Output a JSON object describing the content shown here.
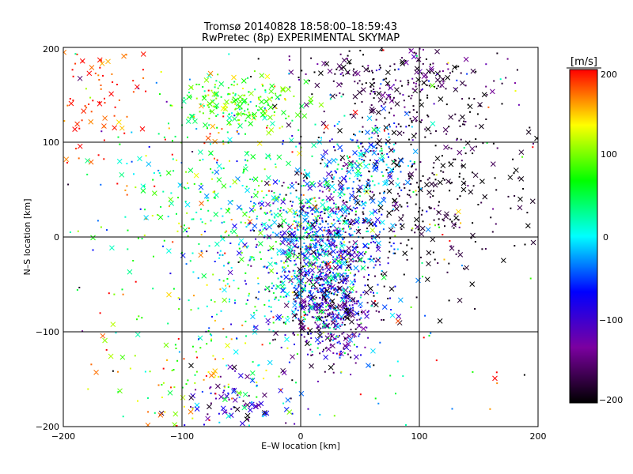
{
  "chart_data": {
    "type": "scatter",
    "title": "Tromsø 20140828 18:58:00–18:59:43",
    "subtitle": "RwPretec (8p) EXPERIMENTAL SKYMAP",
    "xlabel": "E–W location [km]",
    "ylabel": "N–S location [km]",
    "xlim": [
      -200,
      200
    ],
    "ylim": [
      -200,
      200
    ],
    "x_ticks": [
      "−200",
      "−100",
      "0",
      "100",
      "200"
    ],
    "y_ticks": [
      "−200",
      "−100",
      "0",
      "100",
      "200"
    ],
    "grid": true,
    "marker_styles": [
      "dot",
      "cross"
    ],
    "colorbar": {
      "unit_label": "[m/s]",
      "range": [
        -200,
        200
      ],
      "ticks": [
        "200",
        "100",
        "0",
        "−100",
        "−200"
      ],
      "colormap": [
        "#000000",
        "#7b00a0",
        "#0000ff",
        "#00ffff",
        "#00ff00",
        "#ffff00",
        "#ff0000"
      ]
    },
    "clusters": [
      {
        "center": [
          20,
          -10
        ],
        "spread": [
          25,
          40
        ],
        "count": 900,
        "mean_velocity": -60,
        "velocity_spread": 70,
        "cross_fraction": 0.25
      },
      {
        "center": [
          25,
          -80
        ],
        "spread": [
          18,
          25
        ],
        "count": 350,
        "mean_velocity": -130,
        "velocity_spread": 60,
        "cross_fraction": 0.3
      },
      {
        "center": [
          100,
          60
        ],
        "spread": [
          45,
          60
        ],
        "count": 450,
        "mean_velocity": -190,
        "velocity_spread": 20,
        "cross_fraction": 0.3
      },
      {
        "center": [
          80,
          170
        ],
        "spread": [
          45,
          20
        ],
        "count": 220,
        "mean_velocity": -170,
        "velocity_spread": 40,
        "cross_fraction": 0.3
      },
      {
        "center": [
          -50,
          140
        ],
        "spread": [
          25,
          15
        ],
        "count": 180,
        "mean_velocity": 80,
        "velocity_spread": 40,
        "cross_fraction": 0.4
      },
      {
        "center": [
          -60,
          50
        ],
        "spread": [
          50,
          60
        ],
        "count": 320,
        "mean_velocity": 60,
        "velocity_spread": 60,
        "cross_fraction": 0.2
      },
      {
        "center": [
          -170,
          140
        ],
        "spread": [
          20,
          35
        ],
        "count": 80,
        "mean_velocity": 190,
        "velocity_spread": 20,
        "cross_fraction": 0.3
      },
      {
        "center": [
          60,
          80
        ],
        "spread": [
          20,
          25
        ],
        "count": 150,
        "mean_velocity": -30,
        "velocity_spread": 40,
        "cross_fraction": 0.3
      },
      {
        "center": [
          -20,
          -50
        ],
        "spread": [
          40,
          50
        ],
        "count": 250,
        "mean_velocity": 0,
        "velocity_spread": 70,
        "cross_fraction": 0.2
      },
      {
        "center": [
          -50,
          -170
        ],
        "spread": [
          25,
          18
        ],
        "count": 90,
        "mean_velocity": -110,
        "velocity_spread": 60,
        "cross_fraction": 0.5
      },
      {
        "center": [
          -100,
          -140
        ],
        "spread": [
          30,
          40
        ],
        "count": 90,
        "mean_velocity": 120,
        "velocity_spread": 60,
        "cross_fraction": 0.2
      },
      {
        "center": [
          0,
          0
        ],
        "spread": [
          140,
          140
        ],
        "count": 280,
        "mean_velocity": 40,
        "velocity_spread": 130,
        "cross_fraction": 0.2
      }
    ]
  }
}
